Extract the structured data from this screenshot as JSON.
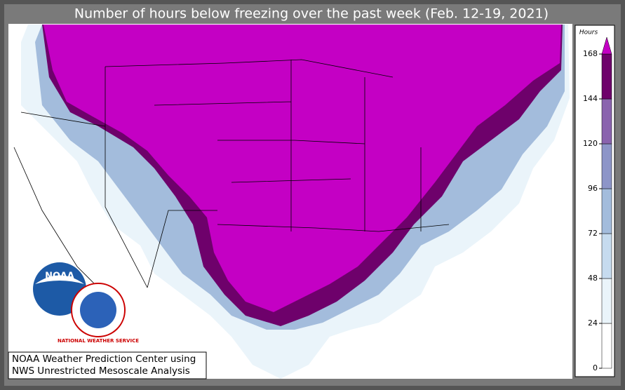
{
  "title": "Number of hours below freezing over the past week (Feb. 12-19, 2021)",
  "credit": [
    "NOAA Weather Prediction Center using",
    "NWS Unrestricted Mesoscale Analysis"
  ],
  "logos": {
    "noaa": "NOAA",
    "nws": "NATIONAL WEATHER SERVICE"
  },
  "legend": {
    "title": "Hours",
    "ticks": [
      0,
      24,
      48,
      72,
      96,
      120,
      144,
      168
    ],
    "colors": [
      "#ffffff",
      "#eaf4fa",
      "#c6dbef",
      "#a3bcdc",
      "#8d95c8",
      "#8a63ae",
      "#6e016b",
      "#c400c4"
    ]
  }
}
